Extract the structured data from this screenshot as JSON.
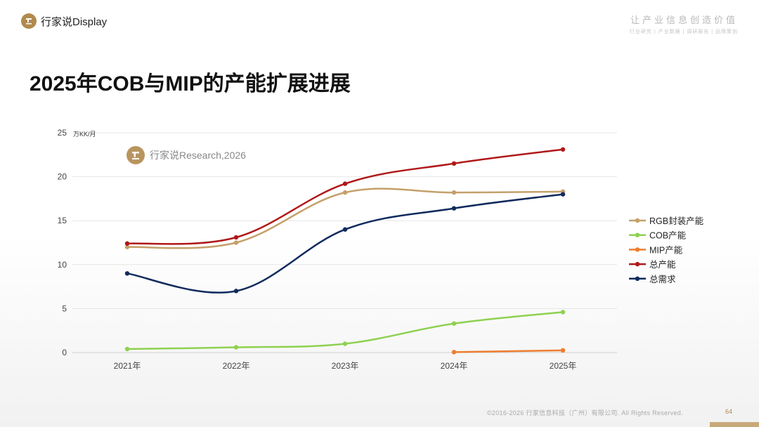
{
  "header": {
    "brand_name": "行家说Display",
    "slogan_main": "让产业信息创造价值",
    "slogan_sub": "行业研究 | 产业数据 | 调研报告 | 品牌策划"
  },
  "page_title": "2025年COB与MIP的产能扩展进展",
  "watermark": "行家说Research,2026",
  "chart_data": {
    "type": "line",
    "title": "2025年COB与MIP的产能扩展进展",
    "ylabel": "万KK/月",
    "xlabel": "",
    "categories": [
      "2021年",
      "2022年",
      "2023年",
      "2024年",
      "2025年"
    ],
    "ylim": [
      0,
      25
    ],
    "yticks": [
      0,
      5,
      10,
      15,
      20,
      25
    ],
    "grid": true,
    "legend_position": "right",
    "series": [
      {
        "name": "RGB封装产能",
        "color": "#c4a06a",
        "values": [
          12.0,
          12.5,
          18.2,
          18.2,
          18.3
        ]
      },
      {
        "name": "COB产能",
        "color": "#8ed150",
        "values": [
          0.4,
          0.6,
          1.0,
          3.3,
          4.6
        ]
      },
      {
        "name": "MIP产能",
        "color": "#ee7d2f",
        "values": [
          null,
          null,
          null,
          0.05,
          0.25
        ]
      },
      {
        "name": "总产能",
        "color": "#b01818",
        "values": [
          12.4,
          13.1,
          19.2,
          21.5,
          23.1
        ]
      },
      {
        "name": "总需求",
        "color": "#102a5e",
        "values": [
          9.0,
          7.0,
          14.0,
          16.4,
          18.0
        ]
      }
    ]
  },
  "footer": {
    "copyright": "©2016-2026 行家信息科技（广州）有限公司. All Rights Reserved.",
    "page_number": "64"
  }
}
